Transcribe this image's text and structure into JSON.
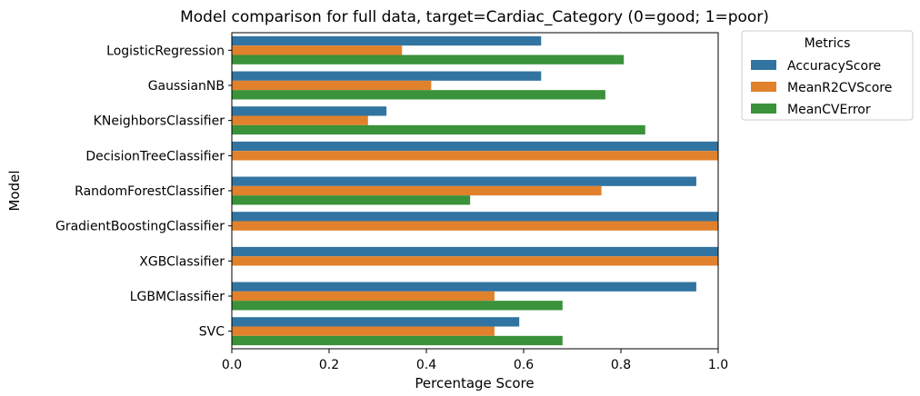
{
  "chart_data": {
    "type": "bar",
    "orientation": "horizontal",
    "title": "Model comparison for full data, target=Cardiac_Category (0=good; 1=poor)",
    "xlabel": "Percentage Score",
    "ylabel": "Model",
    "xlim": [
      0.0,
      1.0
    ],
    "xticks": [
      "0.0",
      "0.2",
      "0.4",
      "0.6",
      "0.8",
      "1.0"
    ],
    "grid": false,
    "legend_title": "Metrics",
    "legend_placement": "outside-upper-right",
    "categories": [
      "LogisticRegression",
      "GaussianNB",
      "KNeighborsClassifier",
      "DecisionTreeClassifier",
      "RandomForestClassifier",
      "GradientBoostingClassifier",
      "XGBClassifier",
      "LGBMClassifier",
      "SVC"
    ],
    "series": [
      {
        "name": "AccuracyScore",
        "color": "#3274a1",
        "values": [
          0.636,
          0.636,
          0.318,
          1.0,
          0.955,
          1.0,
          1.0,
          0.955,
          0.591
        ]
      },
      {
        "name": "MeanR2CVScore",
        "color": "#e1812c",
        "values": [
          0.35,
          0.41,
          0.28,
          1.0,
          0.76,
          1.0,
          1.0,
          0.54,
          0.54
        ]
      },
      {
        "name": "MeanCVError",
        "color": "#3a923a",
        "values": [
          0.806,
          0.768,
          0.85,
          0.0,
          0.49,
          0.0,
          0.0,
          0.68,
          0.68
        ]
      }
    ]
  }
}
